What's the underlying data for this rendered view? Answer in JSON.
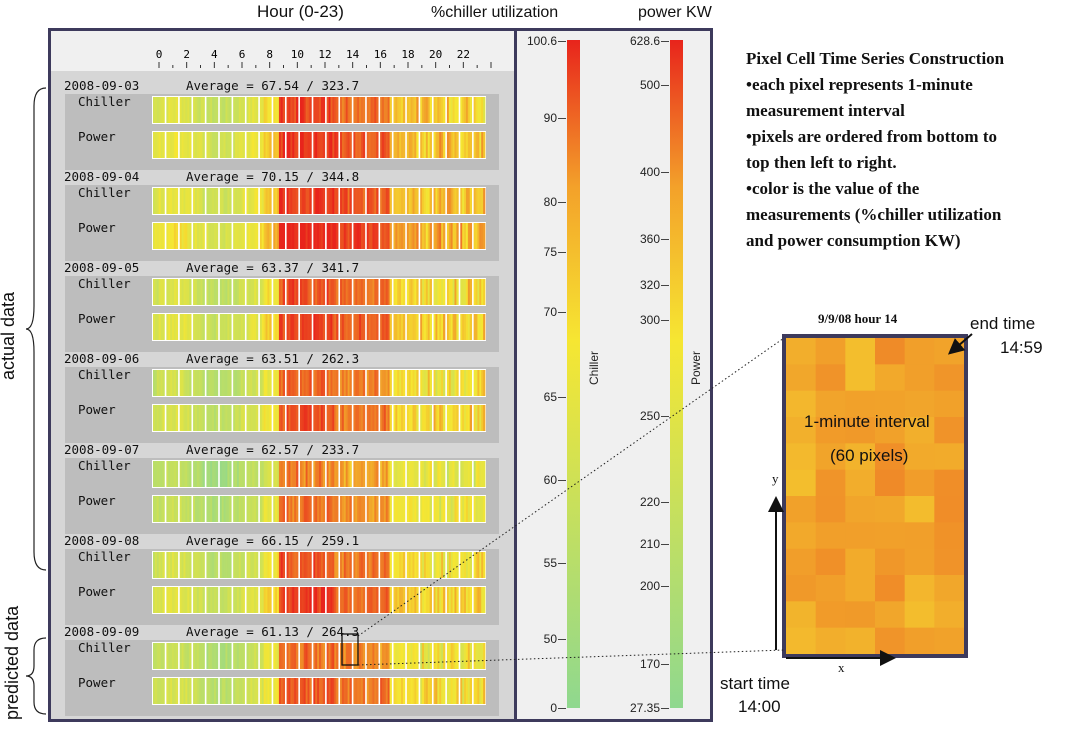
{
  "chart_data": {
    "type": "heatmap",
    "title": "Hour (0-23)",
    "x_ticks": [
      "0",
      "2",
      "4",
      "6",
      "8",
      "10",
      "12",
      "14",
      "16",
      "18",
      "20",
      "22"
    ],
    "series_rows": [
      "Chiller",
      "Power"
    ],
    "days": [
      {
        "date": "2008-09-03",
        "average_label": "Average = 67.54 / 323.7",
        "chiller_avg": 67.54,
        "power_avg": 323.7
      },
      {
        "date": "2008-09-04",
        "average_label": "Average = 70.15 / 344.8",
        "chiller_avg": 70.15,
        "power_avg": 344.8
      },
      {
        "date": "2008-09-05",
        "average_label": "Average = 63.37 / 341.7",
        "chiller_avg": 63.37,
        "power_avg": 341.7
      },
      {
        "date": "2008-09-06",
        "average_label": "Average = 63.51 / 262.3",
        "chiller_avg": 63.51,
        "power_avg": 262.3
      },
      {
        "date": "2008-09-07",
        "average_label": "Average = 62.57 / 233.7",
        "chiller_avg": 62.57,
        "power_avg": 233.7
      },
      {
        "date": "2008-09-08",
        "average_label": "Average = 66.15 / 259.1",
        "chiller_avg": 66.15,
        "power_avg": 259.1
      },
      {
        "date": "2008-09-09",
        "average_label": "Average = 61.13 / 264.3",
        "chiller_avg": 61.13,
        "power_avg": 264.3
      }
    ],
    "chiller_colorbar": {
      "header": "%chiller utilization",
      "label": "Chiller",
      "ticks": [
        "100.6",
        "90",
        "80",
        "75",
        "70",
        "65",
        "60",
        "55",
        "50",
        "0"
      ]
    },
    "power_colorbar": {
      "header": "power KW",
      "label": "Power",
      "ticks": [
        "628.6",
        "500",
        "400",
        "360",
        "320",
        "300",
        "250",
        "220",
        "210",
        "200",
        "170",
        "27.35"
      ]
    },
    "colors": {
      "low": "#8fd88f",
      "mid": "#f6e632",
      "high": "#e8241c"
    }
  },
  "labels": {
    "actual": "actual data",
    "predicted": "predicted data"
  },
  "annotation": {
    "heading": "Pixel Cell Time Series Construction",
    "bullets": [
      "•each pixel represents 1-minute",
      "measurement interval",
      "•pixels are ordered from bottom to",
      "top then left to right.",
      "•color is the value of the",
      "measurements (%chiller utilization",
      "and power consumption KW)"
    ]
  },
  "zoom": {
    "title": "9/9/08 hour 14",
    "center_line1": "1-minute interval",
    "center_line2": "(60 pixels)",
    "end_time_label": "end time",
    "end_time": "14:59",
    "start_time_label": "start time",
    "start_time": "14:00",
    "x_label": "x",
    "y_label": "y"
  }
}
